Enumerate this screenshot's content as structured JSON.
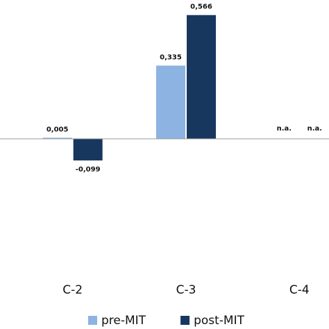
{
  "chart_data": {
    "type": "bar",
    "categories": [
      "C-2",
      "C-3",
      "C-4"
    ],
    "series": [
      {
        "name": "pre-MIT",
        "color": "#8db3e2",
        "values": [
          0.005,
          0.335,
          null
        ],
        "value_labels": [
          "0,005",
          "0,335",
          "n.a."
        ]
      },
      {
        "name": "post-MIT",
        "color": "#17375e",
        "values": [
          -0.099,
          0.566,
          null
        ],
        "value_labels": [
          "-0,099",
          "0,566",
          "n.a."
        ]
      }
    ],
    "ylim": [
      -0.6,
      0.6
    ]
  }
}
